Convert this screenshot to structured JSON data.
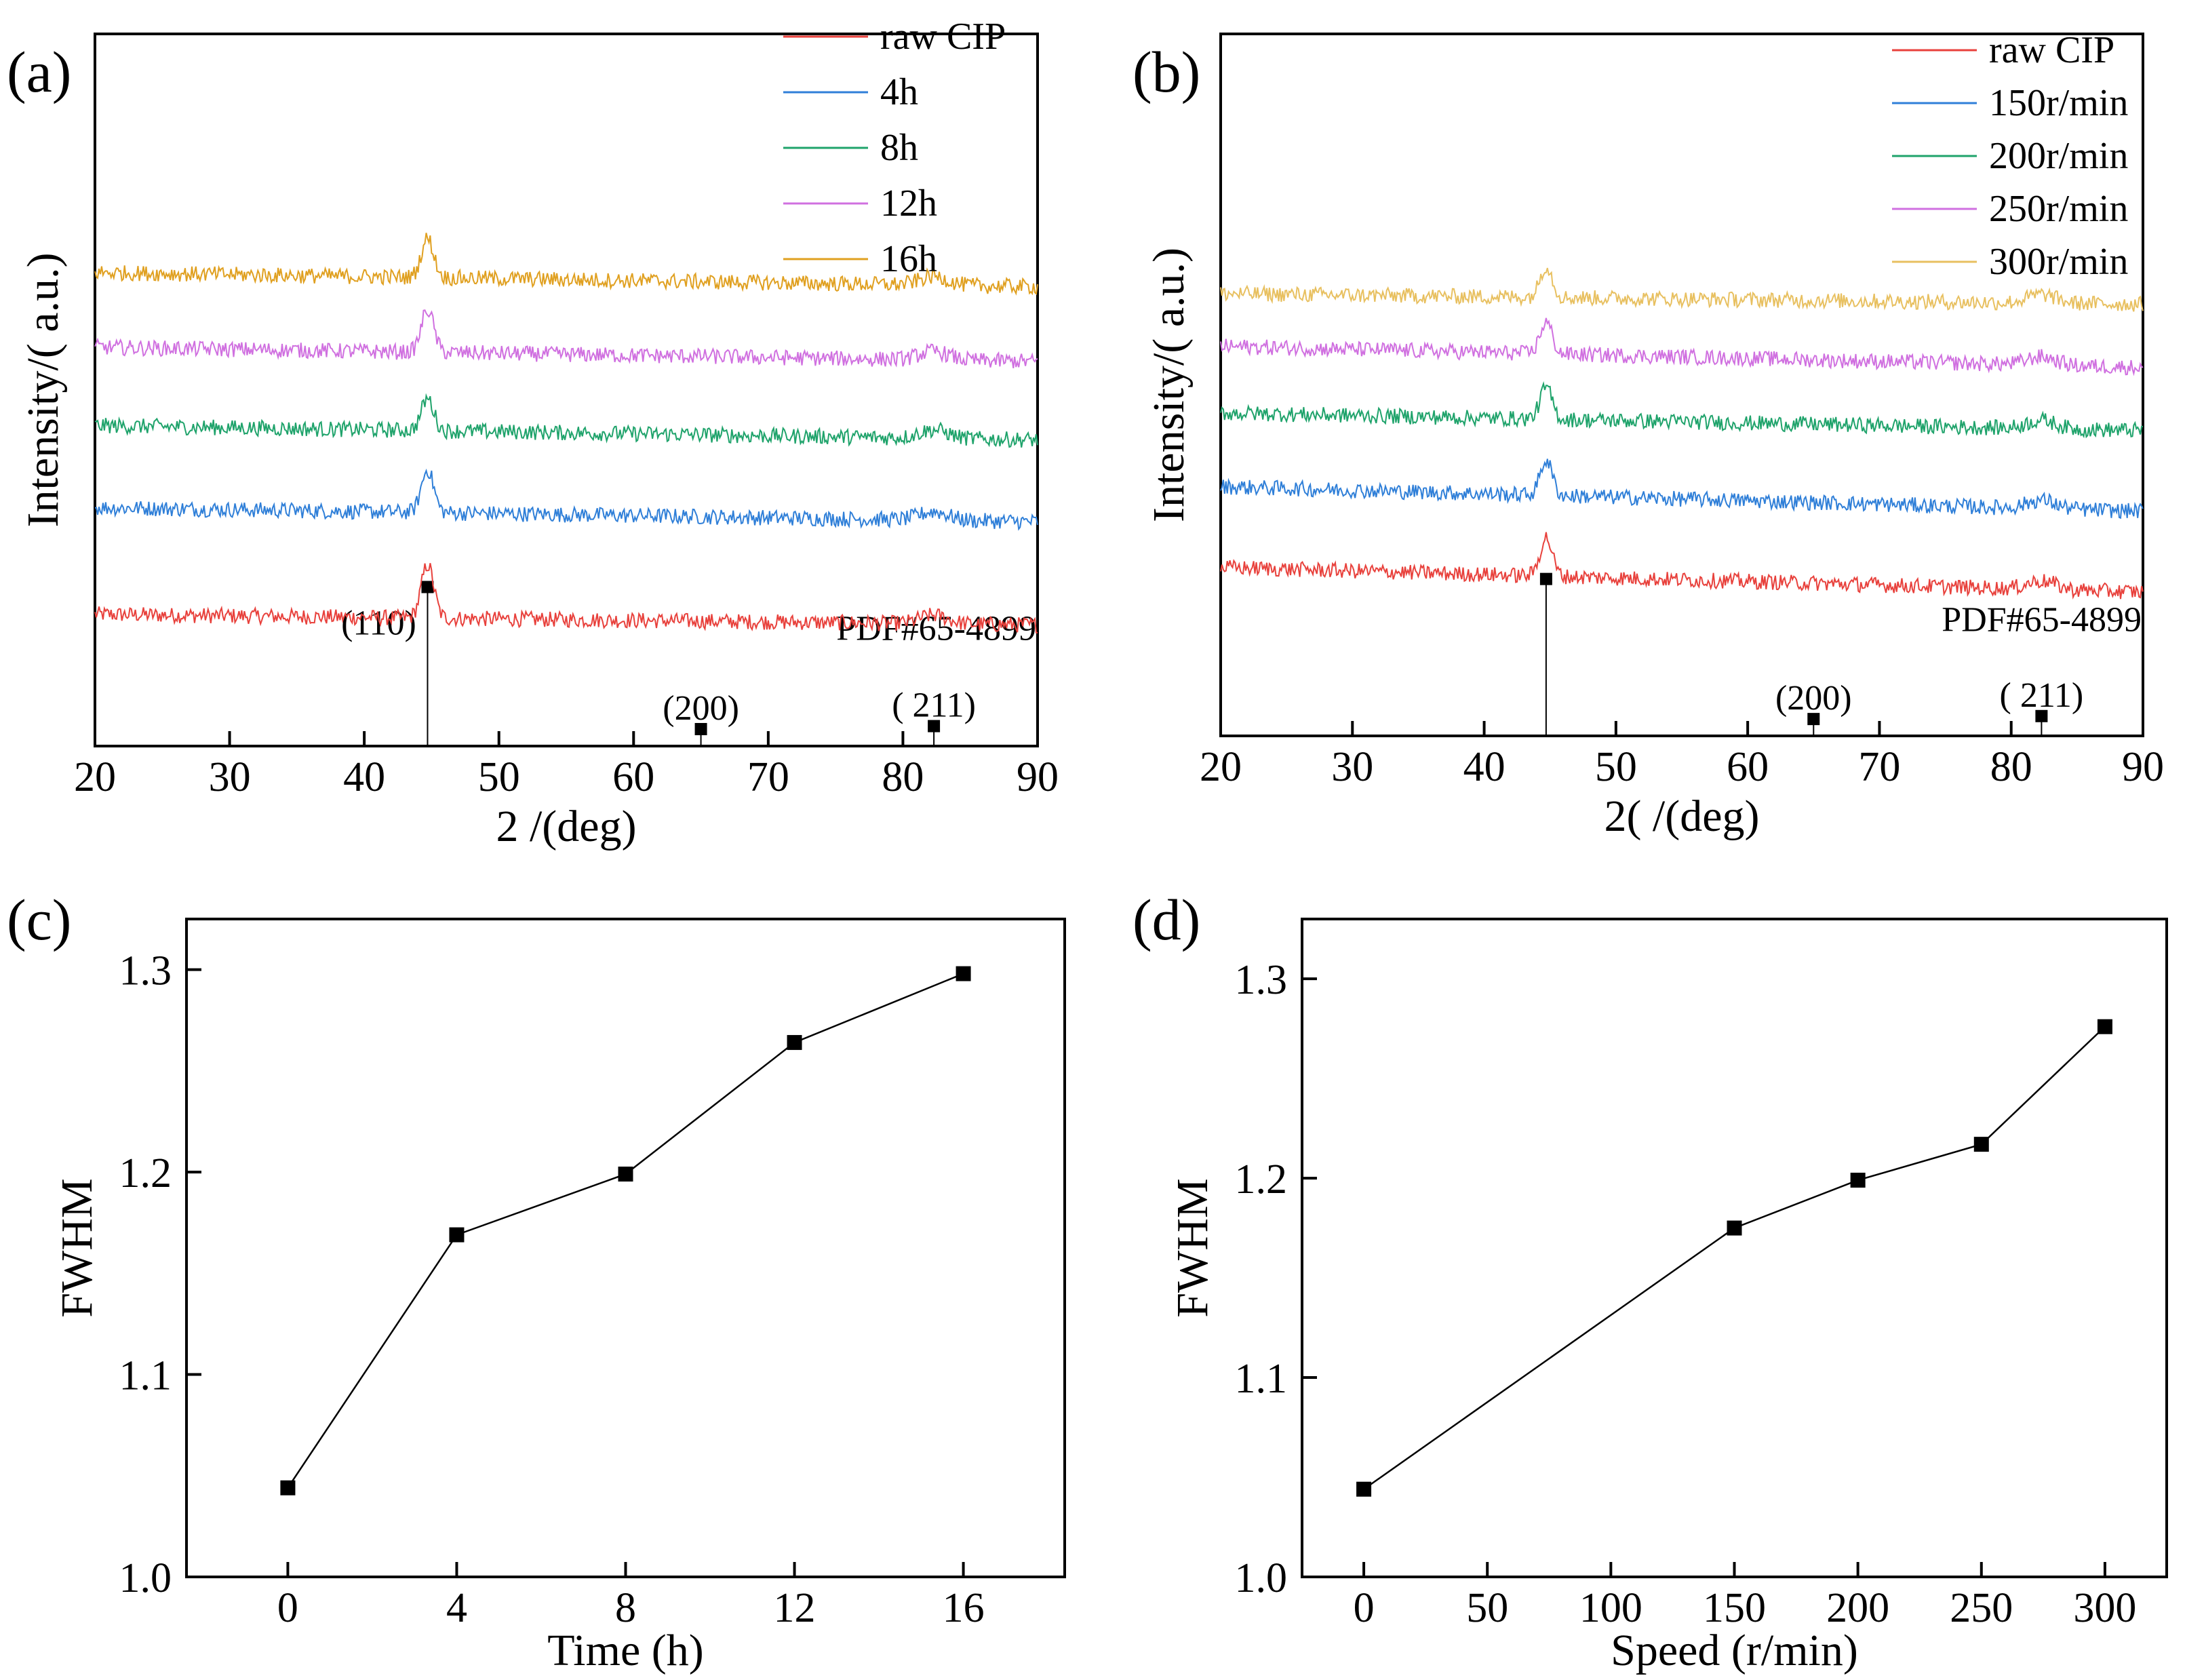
{
  "chart_data": [
    {
      "type": "line",
      "panel": "(a)",
      "xlabel": "2 /(deg)",
      "ylabel": "Intensity/( a.u.)",
      "xlim": [
        20,
        90
      ],
      "xticks": [
        "20",
        "30",
        "40",
        "50",
        "60",
        "70",
        "80",
        "90"
      ],
      "yticks_shown": false,
      "legend_position": "top-right",
      "series": [
        {
          "name": "raw CIP",
          "color": "#e8413c",
          "baseline": 0.185,
          "end": 0.17,
          "peak_height": 0.075
        },
        {
          "name": "4h",
          "color": "#2f7fd8",
          "baseline": 0.335,
          "end": 0.315,
          "peak_height": 0.06
        },
        {
          "name": "8h",
          "color": "#1fa36b",
          "baseline": 0.45,
          "end": 0.43,
          "peak_height": 0.045
        },
        {
          "name": "12h",
          "color": "#d070e0",
          "baseline": 0.56,
          "end": 0.54,
          "peak_height": 0.06
        },
        {
          "name": "16h",
          "color": "#e0a020",
          "baseline": 0.665,
          "end": 0.645,
          "peak_height": 0.055
        }
      ],
      "reference": {
        "label": "PDF#65-4899",
        "peaks": [
          {
            "x": 44.7,
            "intensity": 100,
            "label": "(110)"
          },
          {
            "x": 65.0,
            "intensity": 5,
            "label": "(200)"
          },
          {
            "x": 82.3,
            "intensity": 7,
            "label": "(  211)"
          }
        ]
      }
    },
    {
      "type": "line",
      "panel": "(b)",
      "xlabel": "2( /(deg)",
      "ylabel": "Intensity/( a.u.)",
      "xlim": [
        20,
        90
      ],
      "xticks": [
        "20",
        "30",
        "40",
        "50",
        "60",
        "70",
        "80",
        "90"
      ],
      "yticks_shown": false,
      "legend_position": "top-right",
      "series": [
        {
          "name": "raw CIP",
          "color": "#e8413c",
          "baseline": 0.24,
          "end": 0.205,
          "peak_height": 0.055
        },
        {
          "name": "150r/min",
          "color": "#2f7fd8",
          "baseline": 0.355,
          "end": 0.32,
          "peak_height": 0.05
        },
        {
          "name": "200r/min",
          "color": "#1fa36b",
          "baseline": 0.46,
          "end": 0.435,
          "peak_height": 0.045
        },
        {
          "name": "250r/min",
          "color": "#d070e0",
          "baseline": 0.555,
          "end": 0.525,
          "peak_height": 0.045
        },
        {
          "name": "300r/min",
          "color": "#e8c060",
          "baseline": 0.63,
          "end": 0.615,
          "peak_height": 0.045
        }
      ],
      "reference": {
        "label": "PDF#65-4899",
        "peaks": [
          {
            "x": 44.7,
            "intensity": 100,
            "label": ""
          },
          {
            "x": 65.0,
            "intensity": 5,
            "label": "(200)"
          },
          {
            "x": 82.3,
            "intensity": 7,
            "label": "(  211)"
          }
        ]
      }
    },
    {
      "type": "line",
      "panel": "(c)",
      "xlabel": "Time (h)",
      "ylabel": "FWHM",
      "xlim": [
        -2.4,
        18.4
      ],
      "ylim": [
        1.0,
        1.325
      ],
      "xticks": [
        0,
        4,
        8,
        12,
        16
      ],
      "yticks": [
        1.0,
        1.1,
        1.2,
        1.3
      ],
      "ytick_labels": [
        "1.0",
        "1.1",
        "1.2",
        "1.3"
      ],
      "marker": "square",
      "x": [
        0,
        4,
        8,
        12,
        16
      ],
      "y": [
        1.044,
        1.169,
        1.199,
        1.264,
        1.298
      ]
    },
    {
      "type": "line",
      "panel": "(d)",
      "xlabel": "Speed (r/min)",
      "ylabel": "FWHM",
      "xlim": [
        -25,
        325
      ],
      "ylim": [
        1.0,
        1.33
      ],
      "xticks": [
        0,
        50,
        100,
        150,
        200,
        250,
        300
      ],
      "yticks": [
        1.0,
        1.1,
        1.2,
        1.3
      ],
      "ytick_labels": [
        "1.0",
        "1.1",
        "1.2",
        "1.3"
      ],
      "marker": "square",
      "x": [
        0,
        150,
        200,
        250,
        300
      ],
      "y": [
        1.044,
        1.175,
        1.199,
        1.217,
        1.276
      ]
    }
  ]
}
